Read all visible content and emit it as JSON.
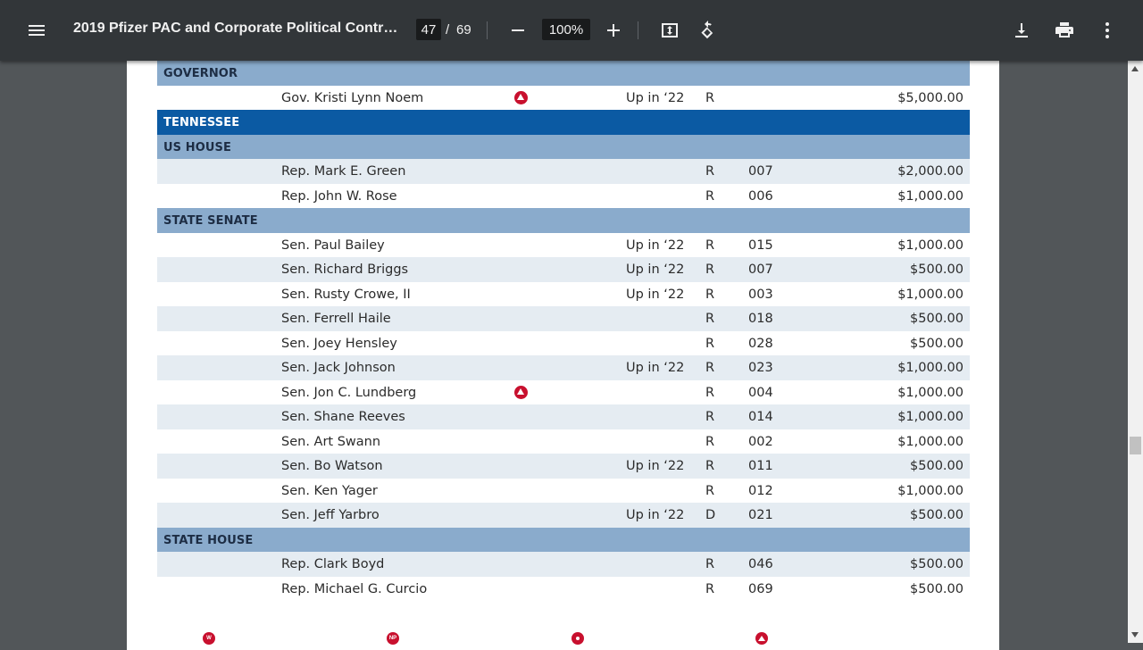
{
  "toolbar": {
    "menu_icon": "hamburger-menu-icon",
    "title": "2019 Pfizer PAC and Corporate Political Contri...",
    "current_page": "47",
    "page_separator": "/",
    "total_pages": "69",
    "zoom": "100%",
    "icons": [
      "zoom-out-icon",
      "zoom-in-icon",
      "fit-to-page-icon",
      "rotate-icon",
      "download-icon",
      "print-icon",
      "more-vert-icon"
    ]
  },
  "table": {
    "governor_label": "GOVERNOR",
    "governor_rows": [
      {
        "name": "Gov. Kristi Lynn Noem",
        "flag": true,
        "up": "Up in ‘22",
        "party": "R",
        "district": "",
        "amount": "$5,000.00"
      }
    ],
    "state_label": "TENNESSEE",
    "us_house_label": "US HOUSE",
    "us_house_rows": [
      {
        "name": "Rep. Mark E. Green",
        "flag": false,
        "up": "",
        "party": "R",
        "district": "007",
        "amount": "$2,000.00"
      },
      {
        "name": "Rep. John W. Rose",
        "flag": false,
        "up": "",
        "party": "R",
        "district": "006",
        "amount": "$1,000.00"
      }
    ],
    "state_senate_label": "STATE SENATE",
    "state_senate_rows": [
      {
        "name": "Sen. Paul Bailey",
        "flag": false,
        "up": "Up in ‘22",
        "party": "R",
        "district": "015",
        "amount": "$1,000.00"
      },
      {
        "name": "Sen. Richard Briggs",
        "flag": false,
        "up": "Up in ‘22",
        "party": "R",
        "district": "007",
        "amount": "$500.00"
      },
      {
        "name": "Sen. Rusty Crowe, II",
        "flag": false,
        "up": "Up in ‘22",
        "party": "R",
        "district": "003",
        "amount": "$1,000.00"
      },
      {
        "name": "Sen. Ferrell Haile",
        "flag": false,
        "up": "",
        "party": "R",
        "district": "018",
        "amount": "$500.00"
      },
      {
        "name": "Sen. Joey Hensley",
        "flag": false,
        "up": "",
        "party": "R",
        "district": "028",
        "amount": "$500.00"
      },
      {
        "name": "Sen. Jack Johnson",
        "flag": false,
        "up": "Up in ‘22",
        "party": "R",
        "district": "023",
        "amount": "$1,000.00"
      },
      {
        "name": "Sen. Jon C. Lundberg",
        "flag": true,
        "up": "",
        "party": "R",
        "district": "004",
        "amount": "$1,000.00"
      },
      {
        "name": "Sen. Shane Reeves",
        "flag": false,
        "up": "",
        "party": "R",
        "district": "014",
        "amount": "$1,000.00"
      },
      {
        "name": "Sen. Art Swann",
        "flag": false,
        "up": "",
        "party": "R",
        "district": "002",
        "amount": "$1,000.00"
      },
      {
        "name": "Sen. Bo Watson",
        "flag": false,
        "up": "Up in ‘22",
        "party": "R",
        "district": "011",
        "amount": "$500.00"
      },
      {
        "name": "Sen. Ken Yager",
        "flag": false,
        "up": "",
        "party": "R",
        "district": "012",
        "amount": "$1,000.00"
      },
      {
        "name": "Sen. Jeff Yarbro",
        "flag": false,
        "up": "Up in ‘22",
        "party": "D",
        "district": "021",
        "amount": "$500.00"
      }
    ],
    "state_house_label": "STATE HOUSE",
    "state_house_rows": [
      {
        "name": "Rep. Clark Boyd",
        "flag": false,
        "up": "",
        "party": "R",
        "district": "046",
        "amount": "$500.00"
      },
      {
        "name": "Rep. Michael G. Curcio",
        "flag": false,
        "up": "",
        "party": "R",
        "district": "069",
        "amount": "$500.00"
      }
    ]
  },
  "legend": {
    "w_label": "W",
    "np_label": "NP"
  },
  "colors": {
    "toolbar_bg": "#323639",
    "viewer_bg": "#525659",
    "section_header": "#8aabcc",
    "state_header": "#0b5aa3",
    "row_shade": "#e5ecf2",
    "flag_red": "#c8102e"
  }
}
